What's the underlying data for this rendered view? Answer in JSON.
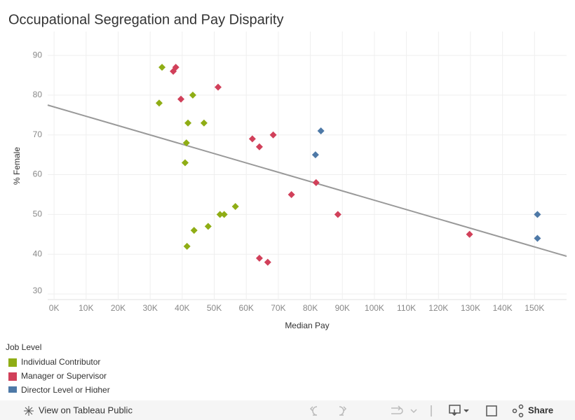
{
  "chart_data": {
    "type": "scatter",
    "title": "Occupational Segregation and Pay Disparity",
    "x_label": "Median Pay",
    "y_label": "% Female",
    "xlim": [
      -2000,
      160000
    ],
    "xticks": [
      {
        "value": 0,
        "label": "0K"
      },
      {
        "value": 10000,
        "label": "10K"
      },
      {
        "value": 20000,
        "label": "20K"
      },
      {
        "value": 30000,
        "label": "30K"
      },
      {
        "value": 40000,
        "label": "40K"
      },
      {
        "value": 50000,
        "label": "50K"
      },
      {
        "value": 60000,
        "label": "60K"
      },
      {
        "value": 70000,
        "label": "70K"
      },
      {
        "value": 80000,
        "label": "80K"
      },
      {
        "value": 90000,
        "label": "90K"
      },
      {
        "value": 100000,
        "label": "100K"
      },
      {
        "value": 110000,
        "label": "110K"
      },
      {
        "value": 120000,
        "label": "120K"
      },
      {
        "value": 130000,
        "label": "130K"
      },
      {
        "value": 140000,
        "label": "140K"
      },
      {
        "value": 150000,
        "label": "150K"
      }
    ],
    "ylim": [
      29.3,
      96
    ],
    "yticks": [
      30,
      40,
      50,
      60,
      70,
      80,
      90
    ],
    "grid": true,
    "legend_title": "Job Level",
    "series": [
      {
        "name": "Individual Contributor",
        "color": "#8fad15",
        "x": [
          33700,
          43300,
          32800,
          41800,
          46800,
          41300,
          40900,
          56600,
          51800,
          53100,
          48100,
          43700,
          41500
        ],
        "values": [
          87,
          80,
          78,
          73,
          73,
          68,
          63,
          52,
          50,
          50,
          47,
          46,
          42
        ]
      },
      {
        "name": "Manager or Supervisor",
        "color": "#d1405a",
        "x": [
          38000,
          37200,
          39600,
          51200,
          68400,
          61900,
          64100,
          81800,
          74100,
          88600,
          129700,
          64100,
          66700
        ],
        "values": [
          87,
          86,
          79,
          82,
          70,
          69,
          67,
          58,
          55,
          50,
          45,
          39,
          38
        ]
      },
      {
        "name": "Director Level or Higher",
        "color": "#4e79a7",
        "x": [
          83300,
          81600,
          150900,
          150900
        ],
        "values": [
          71,
          65,
          50,
          44
        ]
      }
    ],
    "trend_line": {
      "color": "#999999",
      "x": [
        -2000,
        160000
      ],
      "values": [
        77.5,
        39.5
      ]
    }
  },
  "toolbar": {
    "view": "View on Tableau Public",
    "share": "Share"
  }
}
